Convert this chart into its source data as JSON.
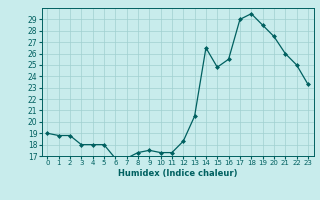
{
  "x": [
    0,
    1,
    2,
    3,
    4,
    5,
    6,
    7,
    8,
    9,
    10,
    11,
    12,
    13,
    14,
    15,
    16,
    17,
    18,
    19,
    20,
    21,
    22,
    23
  ],
  "y": [
    19,
    18.8,
    18.8,
    18,
    18,
    18,
    16.8,
    16.8,
    17.3,
    17.5,
    17.3,
    17.3,
    18.3,
    20.5,
    26.5,
    24.8,
    25.5,
    29.0,
    29.5,
    28.5,
    27.5,
    26.0,
    25.0,
    23.3
  ],
  "line_color": "#006060",
  "marker_color": "#006060",
  "bg_color": "#c8ecec",
  "grid_color": "#a0d0d0",
  "xlabel": "Humidex (Indice chaleur)",
  "ylim": [
    17,
    30
  ],
  "yticks": [
    17,
    18,
    19,
    20,
    21,
    22,
    23,
    24,
    25,
    26,
    27,
    28,
    29
  ],
  "xticks": [
    0,
    1,
    2,
    3,
    4,
    5,
    6,
    7,
    8,
    9,
    10,
    11,
    12,
    13,
    14,
    15,
    16,
    17,
    18,
    19,
    20,
    21,
    22,
    23
  ],
  "figwidth": 3.2,
  "figheight": 2.0,
  "dpi": 100
}
